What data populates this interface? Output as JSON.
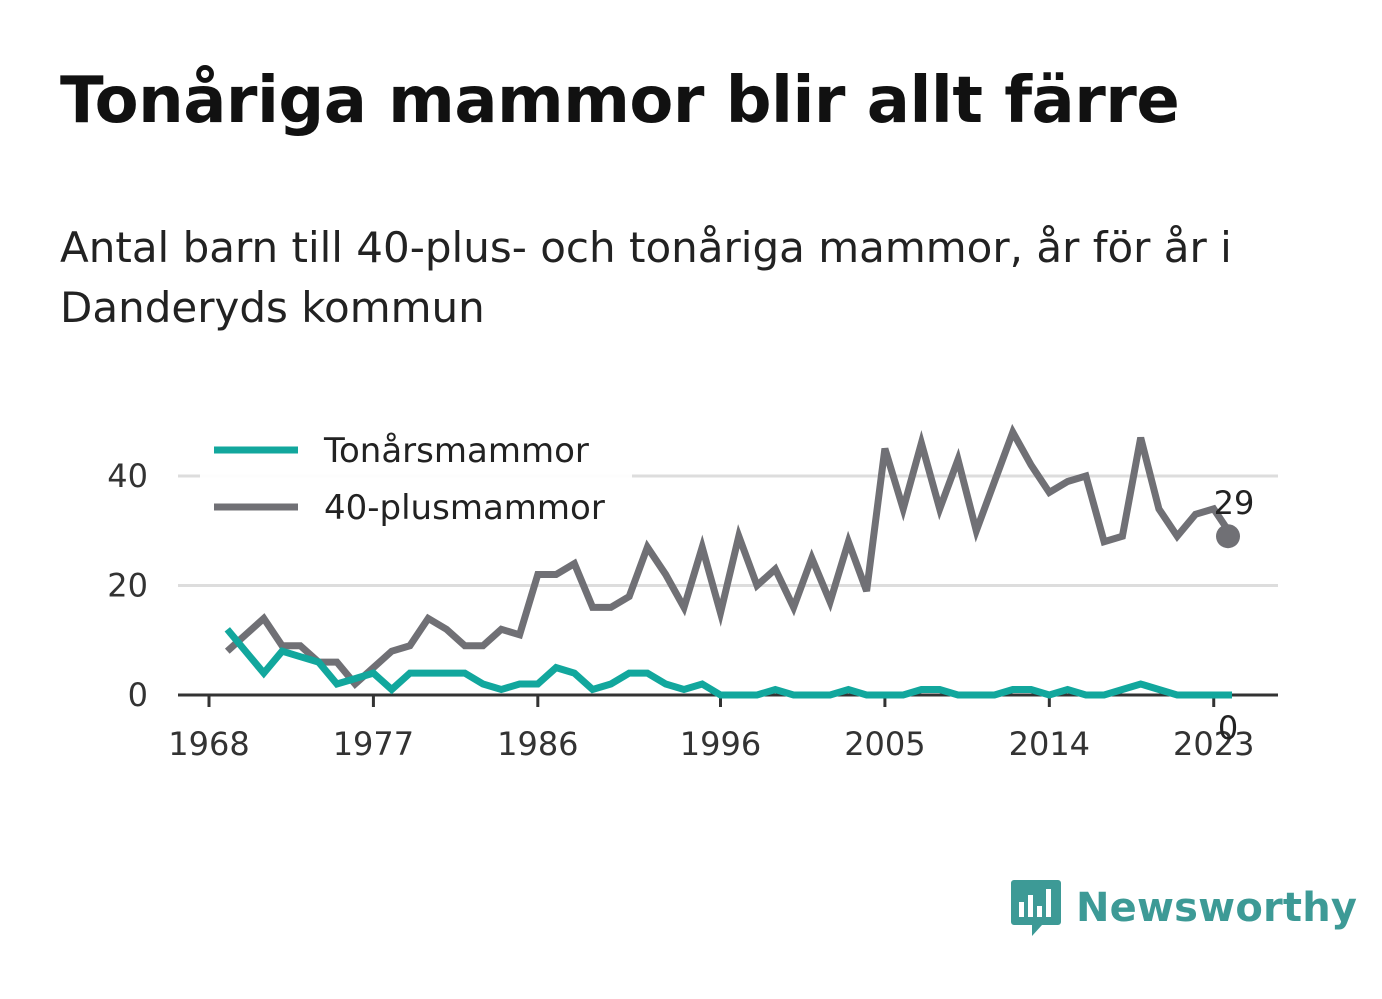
{
  "title": "Tonåriga mammor blir allt färre",
  "subtitle": "Antal barn till 40-plus- och tonåriga mammor, år för år i Danderyds kommun",
  "brand": {
    "name": "Newsworthy",
    "logo_icon": "bar-chart-speech-bubble-icon"
  },
  "colors": {
    "teen": "#12a79d",
    "forty_plus": "#707075",
    "grid": "#dddddd",
    "axis": "#333333",
    "brand": "#3d9a96"
  },
  "chart_data": {
    "type": "line",
    "title": "Tonåriga mammor blir allt färre",
    "subtitle": "Antal barn till 40-plus- och tonåriga mammor, år för år i Danderyds kommun",
    "xlabel": "",
    "ylabel": "",
    "x_ticks": [
      "1968",
      "1977",
      "1986",
      "1996",
      "2005",
      "2014",
      "2023"
    ],
    "y_ticks": [
      "0",
      "20",
      "40"
    ],
    "ylim": [
      0,
      48
    ],
    "xlim": [
      1967,
      2026
    ],
    "grid": true,
    "legend": "top-left",
    "x": [
      1968,
      1969,
      1970,
      1971,
      1972,
      1973,
      1974,
      1975,
      1976,
      1977,
      1978,
      1979,
      1980,
      1981,
      1982,
      1983,
      1984,
      1985,
      1986,
      1987,
      1988,
      1989,
      1990,
      1991,
      1992,
      1993,
      1994,
      1995,
      1996,
      1997,
      1998,
      1999,
      2000,
      2001,
      2002,
      2003,
      2004,
      2005,
      2006,
      2007,
      2008,
      2009,
      2010,
      2011,
      2012,
      2013,
      2014,
      2015,
      2016,
      2017,
      2018,
      2019,
      2020,
      2021,
      2022,
      2023,
      2024
    ],
    "series": [
      {
        "name": "Tonårsmammor",
        "color": "#12a79d",
        "end_label": "0",
        "values": [
          null,
          12,
          8,
          4,
          8,
          7,
          6,
          2,
          3,
          4,
          1,
          4,
          4,
          4,
          4,
          2,
          1,
          2,
          2,
          5,
          4,
          1,
          2,
          4,
          4,
          2,
          1,
          2,
          0,
          0,
          0,
          1,
          0,
          0,
          0,
          1,
          0,
          0,
          0,
          1,
          1,
          0,
          0,
          0,
          1,
          1,
          0,
          1,
          0,
          0,
          1,
          2,
          1,
          0,
          0,
          0,
          0
        ]
      },
      {
        "name": "40-plusmammor",
        "color": "#707075",
        "end_label": "29",
        "values": [
          null,
          8,
          11,
          14,
          9,
          9,
          6,
          6,
          2,
          5,
          8,
          9,
          14,
          12,
          9,
          9,
          12,
          11,
          22,
          22,
          24,
          16,
          16,
          18,
          27,
          22,
          16,
          27,
          15,
          29,
          20,
          23,
          16,
          25,
          17,
          28,
          19,
          45,
          34,
          46,
          34,
          43,
          30,
          39,
          48,
          42,
          37,
          39,
          40,
          28,
          29,
          47,
          34,
          29,
          33,
          34,
          29
        ]
      }
    ]
  }
}
